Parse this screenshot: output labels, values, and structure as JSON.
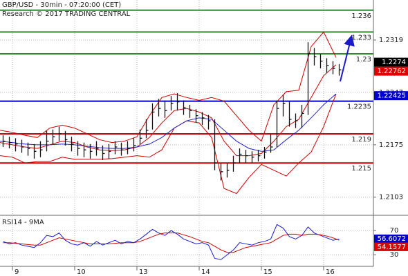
{
  "chart_data": [
    {
      "type": "ohlc",
      "title": "GBP/USD - 30min - 07:20:00 (CET)",
      "subtitle": "Research © 2017 TRADING CENTRAL",
      "xlim": [
        -0.2,
        5.8
      ],
      "ylim": [
        1.208,
        1.2374
      ],
      "yticks": [
        1.2319,
        1.2247,
        1.2175,
        1.2103
      ],
      "color": "#111111",
      "x": [
        -0.15,
        -0.05,
        0.05,
        0.15,
        0.25,
        0.35,
        0.45,
        0.55,
        0.65,
        0.75,
        0.85,
        0.95,
        1.05,
        1.15,
        1.25,
        1.35,
        1.45,
        1.55,
        1.65,
        1.75,
        1.85,
        1.95,
        2.05,
        2.15,
        2.25,
        2.35,
        2.45,
        2.55,
        2.65,
        2.75,
        2.85,
        2.95,
        3.05,
        3.15,
        3.25,
        3.35,
        3.45,
        3.55,
        3.65,
        3.75,
        3.85,
        3.95,
        4.05,
        4.15,
        4.25,
        4.35,
        4.45,
        4.55,
        4.65,
        4.75,
        4.85,
        4.95,
        5.05,
        5.15,
        5.25
      ],
      "high": [
        1.2188,
        1.2186,
        1.2184,
        1.2182,
        1.2178,
        1.2176,
        1.218,
        1.2194,
        1.2196,
        1.22,
        1.2194,
        1.2186,
        1.218,
        1.2178,
        1.2176,
        1.218,
        1.2174,
        1.2176,
        1.218,
        1.2178,
        1.218,
        1.2184,
        1.2196,
        1.221,
        1.2232,
        1.2238,
        1.2234,
        1.2242,
        1.2246,
        1.2236,
        1.223,
        1.2224,
        1.222,
        1.2216,
        1.221,
        1.215,
        1.215,
        1.216,
        1.217,
        1.2168,
        1.2166,
        1.2168,
        1.2172,
        1.219,
        1.2236,
        1.2244,
        1.2234,
        1.2218,
        1.223,
        1.2316,
        1.2308,
        1.23,
        1.2294,
        1.229,
        1.2286
      ],
      "low": [
        1.2172,
        1.217,
        1.2166,
        1.2164,
        1.216,
        1.2156,
        1.2158,
        1.2166,
        1.2176,
        1.218,
        1.2174,
        1.2166,
        1.216,
        1.2158,
        1.2156,
        1.216,
        1.2154,
        1.2156,
        1.2162,
        1.216,
        1.2162,
        1.2166,
        1.2176,
        1.2184,
        1.2196,
        1.2214,
        1.2212,
        1.2222,
        1.2222,
        1.2216,
        1.2212,
        1.2206,
        1.2202,
        1.2196,
        1.214,
        1.2126,
        1.213,
        1.2138,
        1.215,
        1.215,
        1.215,
        1.2152,
        1.2156,
        1.2164,
        1.2172,
        1.2214,
        1.22,
        1.2198,
        1.2198,
        1.2216,
        1.2284,
        1.228,
        1.2274,
        1.2272,
        1.227
      ],
      "close": [
        1.218,
        1.2178,
        1.2176,
        1.2172,
        1.217,
        1.2166,
        1.2168,
        1.218,
        1.2186,
        1.219,
        1.2182,
        1.2176,
        1.217,
        1.2168,
        1.2166,
        1.217,
        1.2163,
        1.2166,
        1.2172,
        1.2168,
        1.217,
        1.2174,
        1.2184,
        1.2195,
        1.222,
        1.2225,
        1.2222,
        1.2232,
        1.2234,
        1.2226,
        1.2222,
        1.2215,
        1.2212,
        1.2208,
        1.215,
        1.2138,
        1.214,
        1.215,
        1.2162,
        1.216,
        1.2158,
        1.216,
        1.2165,
        1.2172,
        1.2225,
        1.2232,
        1.221,
        1.2208,
        1.2218,
        1.23,
        1.2296,
        1.229,
        1.2284,
        1.228,
        1.2278
      ],
      "series": [
        {
          "color": "#cc0000",
          "x": [
            -0.2,
            0,
            0.2,
            0.4,
            0.6,
            0.8,
            1,
            1.2,
            1.4,
            1.6,
            1.8,
            2,
            2.2,
            2.4,
            2.6,
            2.8,
            3,
            3.2,
            3.4,
            3.6,
            3.8,
            4,
            4.2,
            4.4,
            4.6,
            4.8,
            5,
            5.2
          ],
          "values": [
            1.2195,
            1.2192,
            1.2188,
            1.2185,
            1.2198,
            1.2202,
            1.2198,
            1.219,
            1.2182,
            1.2178,
            1.218,
            1.2186,
            1.2215,
            1.224,
            1.2245,
            1.224,
            1.2236,
            1.224,
            1.2235,
            1.2215,
            1.2195,
            1.218,
            1.223,
            1.2248,
            1.225,
            1.231,
            1.233,
            1.2295
          ]
        },
        {
          "color": "#cc0000",
          "x": [
            -0.2,
            0,
            0.2,
            0.4,
            0.6,
            0.8,
            1,
            1.2,
            1.4,
            1.6,
            1.8,
            2,
            2.2,
            2.4,
            2.6,
            2.8,
            3,
            3.2,
            3.4,
            3.6,
            3.8,
            4,
            4.2,
            4.4,
            4.6,
            4.8,
            5,
            5.2
          ],
          "values": [
            1.2178,
            1.2175,
            1.2172,
            1.217,
            1.2175,
            1.218,
            1.2178,
            1.2172,
            1.2168,
            1.2167,
            1.2168,
            1.2172,
            1.2185,
            1.2205,
            1.2222,
            1.2225,
            1.222,
            1.2212,
            1.218,
            1.216,
            1.216,
            1.2163,
            1.218,
            1.22,
            1.221,
            1.224,
            1.227,
            1.2285
          ]
        },
        {
          "color": "#cc0000",
          "x": [
            -0.2,
            0,
            0.2,
            0.4,
            0.6,
            0.8,
            1,
            1.2,
            1.4,
            1.6,
            1.8,
            2,
            2.2,
            2.4,
            2.6,
            2.8,
            3,
            3.2,
            3.4,
            3.6,
            3.8,
            4,
            4.2,
            4.4,
            4.6,
            4.8,
            5,
            5.2
          ],
          "values": [
            1.216,
            1.2158,
            1.215,
            1.2152,
            1.2152,
            1.2158,
            1.2155,
            1.2155,
            1.2155,
            1.2156,
            1.2158,
            1.216,
            1.2158,
            1.2168,
            1.2198,
            1.2208,
            1.2205,
            1.2185,
            1.2115,
            1.2108,
            1.213,
            1.2148,
            1.214,
            1.2132,
            1.215,
            1.2165,
            1.22,
            1.2245
          ]
        },
        {
          "color": "#2222cc",
          "x": [
            -0.2,
            0,
            0.2,
            0.4,
            0.6,
            0.8,
            1,
            1.2,
            1.4,
            1.6,
            1.8,
            2,
            2.2,
            2.4,
            2.6,
            2.8,
            3,
            3.2,
            3.4,
            3.6,
            3.8,
            4,
            4.2,
            4.4,
            4.6,
            4.8,
            5,
            5.2
          ],
          "values": [
            1.218,
            1.2178,
            1.2176,
            1.2175,
            1.2175,
            1.2176,
            1.2175,
            1.2173,
            1.2171,
            1.217,
            1.217,
            1.2172,
            1.2176,
            1.2185,
            1.2198,
            1.2208,
            1.2212,
            1.221,
            1.2195,
            1.218,
            1.217,
            1.2166,
            1.2168,
            1.2182,
            1.2195,
            1.2212,
            1.223,
            1.2245
          ]
        }
      ],
      "levels": [
        {
          "value": 1.236,
          "color": "#2e8b2e"
        },
        {
          "value": 1.233,
          "color": "#2e8b2e"
        },
        {
          "value": 1.23,
          "color": "#2e8b2e"
        },
        {
          "value": 1.2235,
          "color": "#0000cc"
        },
        {
          "value": 1.219,
          "color": "#cc0000"
        },
        {
          "value": 1.215,
          "color": "#cc0000"
        }
      ],
      "price_labels": [
        {
          "value": 1.22762,
          "color": "#dd0000"
        },
        {
          "value": 1.2274,
          "color": "#000000"
        },
        {
          "value": 1.22425,
          "color": "#0000cc"
        }
      ]
    },
    {
      "type": "line",
      "title": "RSI14 - 9MA",
      "xlim": [
        -0.2,
        5.8
      ],
      "ylim": [
        12,
        93
      ],
      "yticks": [
        70,
        30
      ],
      "xticks": [
        {
          "value": 0,
          "label": "9"
        },
        {
          "value": 1,
          "label": "10"
        },
        {
          "value": 2,
          "label": "13"
        },
        {
          "value": 3,
          "label": "14"
        },
        {
          "value": 4,
          "label": "15"
        },
        {
          "value": 5,
          "label": "16"
        }
      ],
      "x": [
        -0.15,
        -0.05,
        0.05,
        0.15,
        0.25,
        0.35,
        0.45,
        0.55,
        0.65,
        0.75,
        0.85,
        0.95,
        1.05,
        1.15,
        1.25,
        1.35,
        1.45,
        1.55,
        1.65,
        1.75,
        1.85,
        1.95,
        2.05,
        2.15,
        2.25,
        2.35,
        2.45,
        2.55,
        2.65,
        2.75,
        2.85,
        2.95,
        3.05,
        3.15,
        3.25,
        3.35,
        3.45,
        3.55,
        3.65,
        3.75,
        3.85,
        3.95,
        4.05,
        4.15,
        4.25,
        4.35,
        4.45,
        4.55,
        4.65,
        4.75,
        4.85,
        4.95,
        5.05,
        5.15,
        5.25
      ],
      "series": [
        {
          "color": "#1a1acc",
          "values": [
            52,
            48,
            50,
            46,
            44,
            42,
            50,
            62,
            60,
            66,
            54,
            48,
            46,
            50,
            44,
            52,
            46,
            50,
            54,
            48,
            52,
            50,
            56,
            64,
            72,
            66,
            62,
            70,
            64,
            56,
            52,
            48,
            50,
            46,
            24,
            22,
            30,
            38,
            50,
            48,
            46,
            50,
            52,
            56,
            80,
            74,
            60,
            56,
            62,
            76,
            66,
            62,
            58,
            54,
            56
          ]
        },
        {
          "color": "#cc0000",
          "values": [
            50,
            50,
            49,
            48,
            47,
            46,
            46,
            50,
            54,
            58,
            56,
            54,
            52,
            50,
            48,
            48,
            48,
            48,
            49,
            50,
            50,
            50,
            52,
            56,
            60,
            64,
            66,
            66,
            66,
            63,
            60,
            56,
            52,
            50,
            44,
            38,
            34,
            34,
            38,
            42,
            44,
            46,
            48,
            50,
            56,
            62,
            64,
            64,
            62,
            64,
            64,
            63,
            61,
            58,
            54
          ]
        }
      ],
      "value_labels": [
        {
          "value": 56.6072,
          "color": "#0000cc"
        },
        {
          "value": 54.1577,
          "color": "#dd0000"
        }
      ]
    }
  ]
}
